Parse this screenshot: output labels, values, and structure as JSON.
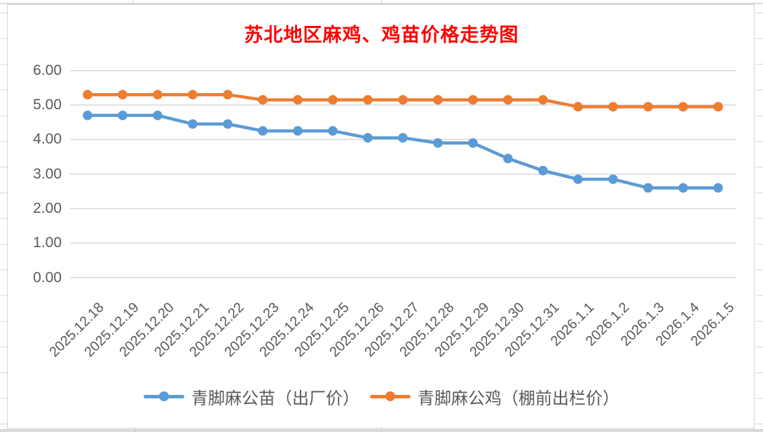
{
  "chart_data": {
    "type": "line",
    "title": "苏北地区麻鸡、鸡苗价格走势图",
    "title_color": "#FF0000",
    "categories": [
      "2025.12.18",
      "2025.12.19",
      "2025.12.20",
      "2025.12.21",
      "2025.12.22",
      "2025.12.23",
      "2025.12.24",
      "2025.12.25",
      "2025.12.26",
      "2025.12.27",
      "2025.12.28",
      "2025.12.29",
      "2025.12.30",
      "2025.12.31",
      "2026.1.1",
      "2026.1.2",
      "2026.1.3",
      "2026.1.4",
      "2026.1.5"
    ],
    "series": [
      {
        "name": "青脚麻公苗（出厂价）",
        "color": "#5B9BD5",
        "values": [
          4.7,
          4.7,
          4.7,
          4.45,
          4.45,
          4.25,
          4.25,
          4.25,
          4.05,
          4.05,
          3.9,
          3.9,
          3.45,
          3.1,
          2.85,
          2.85,
          2.6,
          2.6,
          2.6
        ]
      },
      {
        "name": "青脚麻公鸡（棚前出栏价）",
        "color": "#ED7D31",
        "values": [
          5.3,
          5.3,
          5.3,
          5.3,
          5.3,
          5.15,
          5.15,
          5.15,
          5.15,
          5.15,
          5.15,
          5.15,
          5.15,
          5.15,
          4.95,
          4.95,
          4.95,
          4.95,
          4.95
        ]
      }
    ],
    "xlabel": "",
    "ylabel": "",
    "ylim": [
      0,
      6
    ],
    "ytick_step": 1,
    "ytick_labels": [
      "0.00",
      "1.00",
      "2.00",
      "3.00",
      "4.00",
      "5.00",
      "6.00"
    ],
    "grid": true,
    "gridline_color": "#D9D9D9",
    "axis_text_color": "#595959",
    "legend_position": "bottom",
    "marker": "circle"
  }
}
